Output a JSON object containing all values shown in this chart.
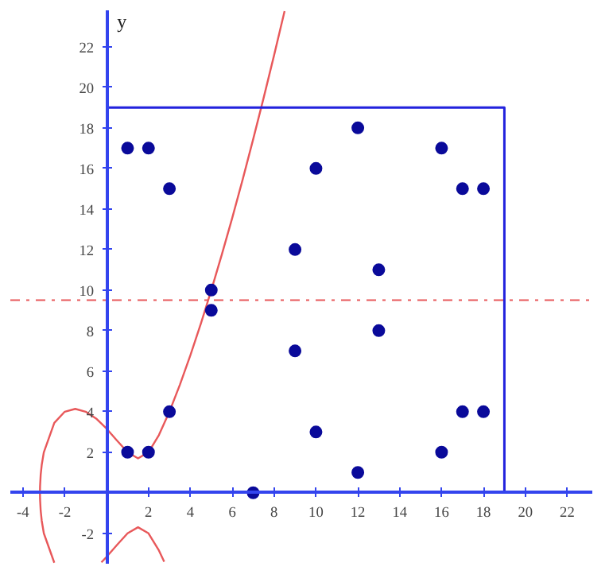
{
  "chart_data": {
    "type": "scatter",
    "ylabel": "y",
    "xlim": [
      -4.6,
      23.2
    ],
    "ylim": [
      -3.5,
      23.8
    ],
    "xticks": [
      -4,
      -2,
      2,
      4,
      6,
      8,
      10,
      12,
      14,
      16,
      18,
      20,
      22
    ],
    "yticks": [
      -2,
      2,
      4,
      6,
      8,
      10,
      12,
      14,
      16,
      18,
      20,
      22
    ],
    "grid": false,
    "series": [
      {
        "type": "line",
        "color": "#e8585a",
        "line_style": "solid",
        "x": [
          2.75,
          2.5,
          2,
          1.5,
          1,
          0.5,
          0,
          -0.25,
          -0.5,
          -1,
          -1.5,
          -2,
          -2.5,
          -3,
          -3.1,
          -3.15,
          -3.18,
          -3.185,
          -3.18,
          -3.15,
          -3.1,
          -3,
          -2.5,
          -2,
          -1.5,
          -1,
          -0.5,
          0,
          0.5,
          1,
          1.5,
          2,
          2.5,
          3,
          3.5,
          4,
          4.5,
          5,
          5.5,
          6,
          6.5,
          7,
          7.5,
          8,
          8.5
        ],
        "values": [
          -3.4,
          -2.85,
          -2,
          -1.7,
          -2,
          -2.57,
          -3.16,
          -3.43,
          null,
          null,
          null,
          null,
          -3.45,
          -2,
          -1.38,
          -0.89,
          -0.32,
          0,
          0.32,
          0.89,
          1.38,
          2,
          3.45,
          4,
          4.14,
          4,
          3.66,
          3.16,
          2.57,
          2,
          1.7,
          2,
          2.85,
          4,
          5.33,
          6.78,
          8.34,
          10,
          11.74,
          13.56,
          15.46,
          17.44,
          19.48,
          21.59,
          23.76
        ]
      },
      {
        "type": "line",
        "color": "#2222dd",
        "line_style": "solid",
        "x": [
          0,
          19,
          19
        ],
        "values": [
          19,
          19,
          0
        ]
      },
      {
        "marker": "circle",
        "color": "#0a0a9a",
        "x": [
          1,
          1,
          2,
          2,
          3,
          3,
          5,
          5,
          7,
          9,
          9,
          10,
          10,
          12,
          12,
          13,
          13,
          16,
          16,
          17,
          17,
          18,
          18
        ],
        "values": [
          2,
          17,
          2,
          17,
          4,
          15,
          9,
          10,
          0,
          7,
          12,
          3,
          16,
          1,
          18,
          8,
          11,
          2,
          17,
          4,
          15,
          4,
          15
        ]
      }
    ],
    "ref_lines": [
      {
        "axis": "y",
        "value": 9.5,
        "color": "#e8585a",
        "line_style": "dashdot"
      }
    ]
  }
}
